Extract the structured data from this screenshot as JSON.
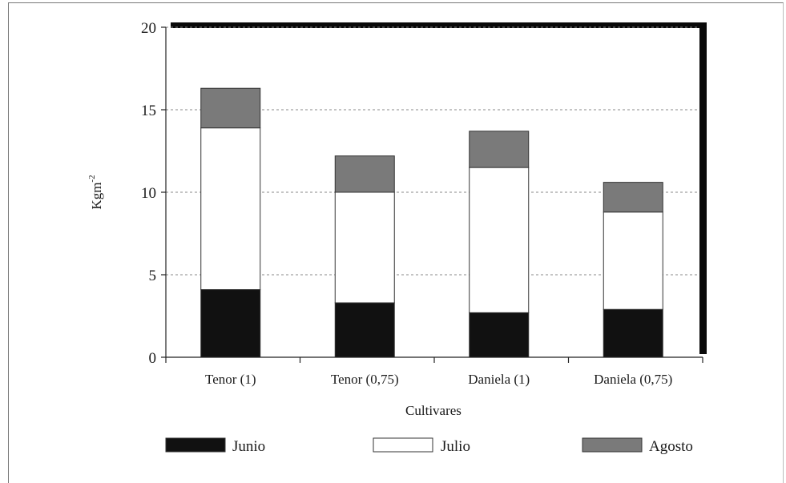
{
  "chart_data": {
    "type": "bar",
    "stacked": true,
    "categories": [
      "Tenor (1)",
      "Tenor (0,75)",
      "Daniela (1)",
      "Daniela (0,75)"
    ],
    "series": [
      {
        "name": "Junio",
        "values": [
          4.1,
          3.3,
          2.7,
          2.9
        ],
        "color": "#111111"
      },
      {
        "name": "Julio",
        "values": [
          9.8,
          6.7,
          8.8,
          5.9
        ],
        "color": "#ffffff"
      },
      {
        "name": "Agosto",
        "values": [
          2.4,
          2.2,
          2.2,
          1.8
        ],
        "color": "#7a7a7a"
      }
    ],
    "xlabel": "Cultivares",
    "ylabel": "Kgm",
    "ylabel_superscript": "-2",
    "ylim": [
      0,
      20
    ],
    "yticks": [
      "0",
      "5",
      "10",
      "15",
      "20"
    ],
    "grid": "horizontal dashed",
    "legend_position": "bottom"
  }
}
